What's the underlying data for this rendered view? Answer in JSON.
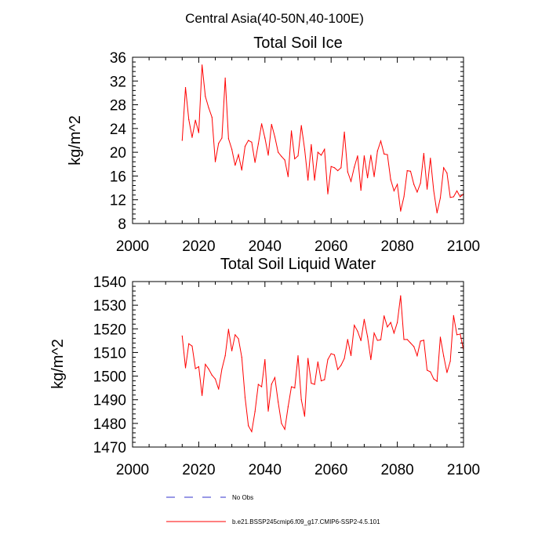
{
  "main_title": "Central Asia(40-50N,40-100E)",
  "chart_data": [
    {
      "type": "line",
      "title": "Total Soil Ice",
      "xlabel": "",
      "ylabel": "kg/m^2",
      "xlim": [
        2000,
        2100
      ],
      "ylim": [
        8,
        36
      ],
      "xticks": [
        2000,
        2020,
        2040,
        2060,
        2080,
        2100
      ],
      "yticks": [
        8,
        12,
        16,
        20,
        24,
        28,
        32,
        36
      ],
      "x_start": 2015,
      "series": [
        {
          "name": "b.e21.BSSP245cmip6.f09_g17.CMIP6-SSP2-4.5.101",
          "color": "#ff0000",
          "values": [
            22.0,
            30.9,
            25.5,
            22.5,
            25.4,
            23.3,
            34.7,
            29.4,
            27.5,
            25.9,
            18.4,
            21.5,
            22.4,
            32.5,
            22.3,
            20.5,
            17.8,
            19.6,
            17.0,
            21.0,
            22.0,
            21.7,
            18.3,
            21.4,
            24.8,
            22.4,
            19.5,
            24.7,
            22.6,
            20.0,
            19.3,
            18.7,
            15.9,
            23.6,
            18.9,
            19.4,
            24.5,
            20.5,
            15.3,
            21.3,
            15.3,
            20.0,
            19.5,
            20.5,
            13.0,
            17.6,
            17.4,
            16.9,
            17.4,
            23.4,
            16.7,
            15.1,
            17.5,
            19.4,
            13.6,
            19.4,
            15.7,
            19.5,
            15.9,
            20.2,
            21.9,
            19.7,
            19.6,
            15.4,
            13.5,
            14.6,
            10.1,
            12.5,
            16.9,
            16.8,
            14.6,
            13.3,
            14.8,
            19.8,
            13.8,
            19.0,
            13.5,
            9.8,
            12.3,
            17.4,
            16.5,
            12.4,
            12.5,
            13.5,
            12.5,
            13.0
          ]
        }
      ]
    },
    {
      "type": "line",
      "title": "Total Soil Liquid Water",
      "xlabel": "",
      "ylabel": "kg/m^2",
      "xlim": [
        2000,
        2100
      ],
      "ylim": [
        1470,
        1540
      ],
      "xticks": [
        2000,
        2020,
        2040,
        2060,
        2080,
        2100
      ],
      "yticks": [
        1470,
        1480,
        1490,
        1500,
        1510,
        1520,
        1530,
        1540
      ],
      "x_start": 2015,
      "series": [
        {
          "name": "b.e21.BSSP245cmip6.f09_g17.CMIP6-SSP2-4.5.101",
          "color": "#ff0000",
          "values": [
            1517.0,
            1503.5,
            1513.7,
            1512.7,
            1503.2,
            1504.0,
            1491.8,
            1505.0,
            1503.0,
            1500.4,
            1498.8,
            1494.5,
            1503.0,
            1508.6,
            1519.8,
            1510.7,
            1517.5,
            1515.8,
            1508.0,
            1491.0,
            1479.0,
            1476.5,
            1485.0,
            1496.5,
            1495.5,
            1507.0,
            1485.2,
            1496.6,
            1499.4,
            1489.0,
            1480.0,
            1477.5,
            1487.0,
            1495.5,
            1495.0,
            1508.6,
            1490.0,
            1483.0,
            1507.5,
            1497.0,
            1496.5,
            1506.0,
            1498.0,
            1498.5,
            1507.0,
            1509.5,
            1509.0,
            1502.8,
            1504.6,
            1507.5,
            1515.5,
            1508.7,
            1521.5,
            1519.0,
            1515.0,
            1524.0,
            1516.7,
            1507.0,
            1518.2,
            1515.1,
            1515.4,
            1525.5,
            1520.8,
            1522.7,
            1518.2,
            1522.7,
            1534.0,
            1515.5,
            1515.5,
            1514.0,
            1512.5,
            1508.6,
            1514.8,
            1515.2,
            1502.5,
            1501.8,
            1498.8,
            1497.8,
            1516.5,
            1508.5,
            1501.5,
            1506.3,
            1525.6,
            1517.5,
            1517.8,
            1511.0
          ]
        }
      ]
    }
  ],
  "legend": [
    {
      "label": "No Obs",
      "style": "dashed",
      "color": "#3333cc"
    },
    {
      "label": "b.e21.BSSP245cmip6.f09_g17.CMIP6-SSP2-4.5.101",
      "style": "solid",
      "color": "#ff0000"
    }
  ]
}
